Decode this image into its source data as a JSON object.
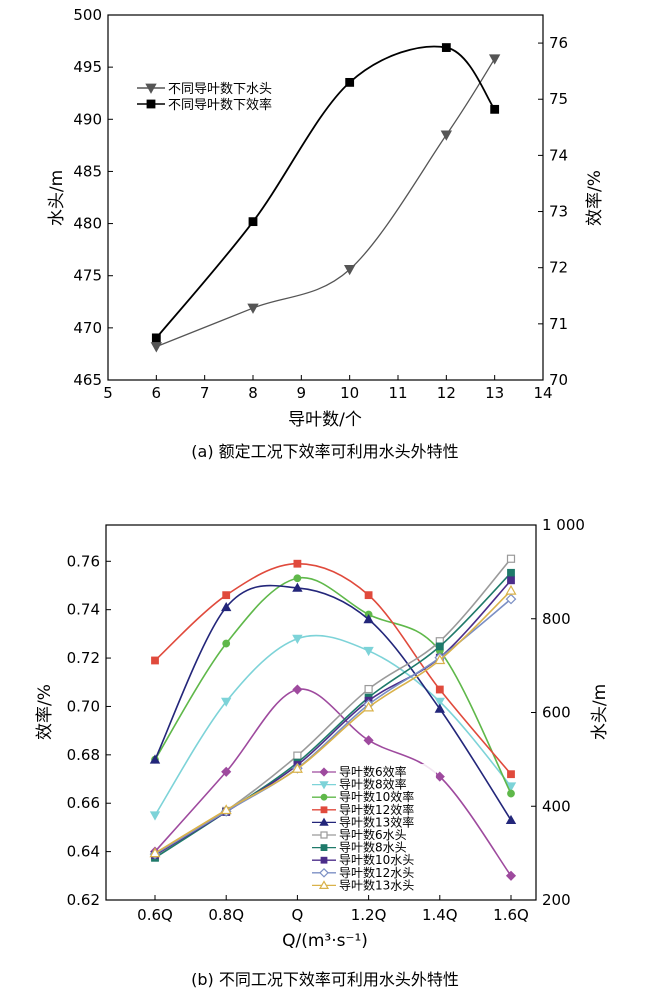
{
  "chart_data": [
    {
      "type": "line",
      "caption": "(a) 额定工况下效率可利用水头外特性",
      "xlabel": "导叶数/个",
      "ylabel": "水头/m",
      "y2label": "效率/%",
      "xlim": [
        5,
        14
      ],
      "xticks": [
        5,
        6,
        7,
        8,
        9,
        10,
        11,
        12,
        13,
        14
      ],
      "ylim": [
        465,
        500
      ],
      "yticks": [
        465,
        470,
        475,
        480,
        485,
        490,
        495,
        500
      ],
      "y2lim": [
        70,
        76.5
      ],
      "y2ticks": [
        70,
        71,
        72,
        73,
        74,
        75,
        76
      ],
      "legend_position": "upper-left",
      "x": [
        6,
        8,
        10,
        12,
        13
      ],
      "series": [
        {
          "name": "不同导叶数下水头",
          "axis": "left",
          "marker": "triangle-down",
          "color": "#555555",
          "values": [
            468.2,
            471.9,
            475.6,
            488.5,
            495.8
          ]
        },
        {
          "name": "不同导叶数下效率",
          "axis": "right",
          "marker": "square",
          "color": "#000000",
          "values": [
            70.75,
            72.82,
            75.3,
            75.92,
            74.82
          ]
        }
      ]
    },
    {
      "type": "line",
      "caption": "(b) 不同工况下效率可利用水头外特性",
      "xlabel": "Q/(m³·s⁻¹)",
      "ylabel": "效率/%",
      "y2label": "水头/m",
      "categories": [
        "0.6Q",
        "0.8Q",
        "Q",
        "1.2Q",
        "1.4Q",
        "1.6Q"
      ],
      "ylim": [
        0.62,
        0.775
      ],
      "yticks": [
        "0.62",
        "0.64",
        "0.66",
        "0.68",
        "0.70",
        "0.72",
        "0.74",
        "0.76"
      ],
      "y2lim": [
        200,
        1000
      ],
      "y2ticks": [
        "200",
        "400",
        "600",
        "800",
        "1 000"
      ],
      "legend_position": "bottom-center",
      "series": [
        {
          "name": "导叶数6效率",
          "axis": "left",
          "marker": "diamond",
          "color": "#9e4a9e",
          "values": [
            0.64,
            0.673,
            0.707,
            0.686,
            0.671,
            0.63
          ]
        },
        {
          "name": "导叶数8效率",
          "axis": "left",
          "marker": "triangle-down",
          "color": "#7dd3d8",
          "values": [
            0.655,
            0.702,
            0.728,
            0.723,
            0.702,
            0.667
          ]
        },
        {
          "name": "导叶数10效率",
          "axis": "left",
          "marker": "circle",
          "color": "#5fb84a",
          "values": [
            0.678,
            0.726,
            0.753,
            0.738,
            0.723,
            0.664
          ]
        },
        {
          "name": "导叶数12效率",
          "axis": "left",
          "marker": "square",
          "color": "#e04a3c",
          "values": [
            0.719,
            0.746,
            0.759,
            0.746,
            0.707,
            0.672
          ]
        },
        {
          "name": "导叶数13效率",
          "axis": "left",
          "marker": "triangle-up",
          "color": "#23267a",
          "values": [
            0.678,
            0.741,
            0.749,
            0.736,
            0.699,
            0.653
          ]
        },
        {
          "name": "导叶数6水头",
          "axis": "right",
          "marker": "square-open",
          "color": "#9a9a9a",
          "values": [
            293,
            390,
            508,
            650,
            752,
            928
          ]
        },
        {
          "name": "导叶数8水头",
          "axis": "right",
          "marker": "square",
          "color": "#1f7a6a",
          "values": [
            290,
            388,
            493,
            632,
            741,
            898
          ]
        },
        {
          "name": "导叶数10水头",
          "axis": "right",
          "marker": "square",
          "color": "#4b2d8a",
          "values": [
            296,
            388,
            488,
            625,
            717,
            882
          ]
        },
        {
          "name": "导叶数12水头",
          "axis": "right",
          "marker": "diamond-open",
          "color": "#7b8fc4",
          "values": [
            298,
            389,
            481,
            617,
            717,
            842
          ]
        },
        {
          "name": "导叶数13水头",
          "axis": "right",
          "marker": "triangle-open",
          "color": "#d9b24a",
          "values": [
            300,
            392,
            480,
            611,
            712,
            860
          ]
        }
      ]
    }
  ]
}
